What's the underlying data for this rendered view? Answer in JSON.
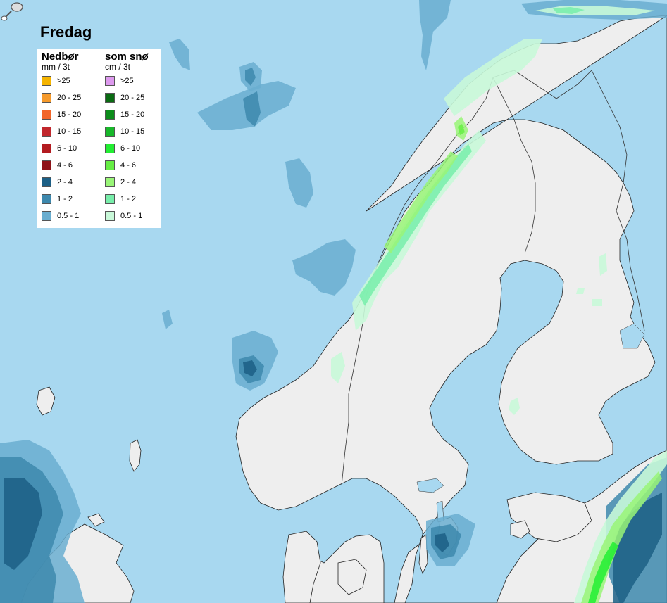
{
  "title": "Fredag",
  "legend": {
    "rain": {
      "heading": "Nedbør",
      "unit": "mm / 3t",
      "items": [
        {
          "label": ">25",
          "color": "#f5b400"
        },
        {
          "label": "20 - 25",
          "color": "#f59a2c"
        },
        {
          "label": "15 - 20",
          "color": "#f2662a"
        },
        {
          "label": "10 - 15",
          "color": "#c1272d"
        },
        {
          "label": "6 - 10",
          "color": "#b31b20"
        },
        {
          "label": "4 - 6",
          "color": "#8e1218"
        },
        {
          "label": "2 - 4",
          "color": "#1c5f85"
        },
        {
          "label": "1 - 2",
          "color": "#3d88ad"
        },
        {
          "label": "0.5 - 1",
          "color": "#6aaed0"
        }
      ]
    },
    "snow": {
      "heading": "som snø",
      "unit": "cm / 3t",
      "items": [
        {
          "label": ">25",
          "color": "#dd99ee"
        },
        {
          "label": "20 - 25",
          "color": "#0a6b12"
        },
        {
          "label": "15 - 20",
          "color": "#0c8c1a"
        },
        {
          "label": "10 - 15",
          "color": "#18b82a"
        },
        {
          "label": "6 - 10",
          "color": "#22ee33"
        },
        {
          "label": "4 - 6",
          "color": "#66ee44"
        },
        {
          "label": "2 - 4",
          "color": "#99f577"
        },
        {
          "label": "1 - 2",
          "color": "#77eeaa"
        },
        {
          "label": "0.5 - 1",
          "color": "#c8f8d8"
        }
      ]
    }
  },
  "colors": {
    "sea": "#a8d8f0",
    "land": "#eeeeee",
    "border": "#333333",
    "lake": "#a8d8f0"
  }
}
